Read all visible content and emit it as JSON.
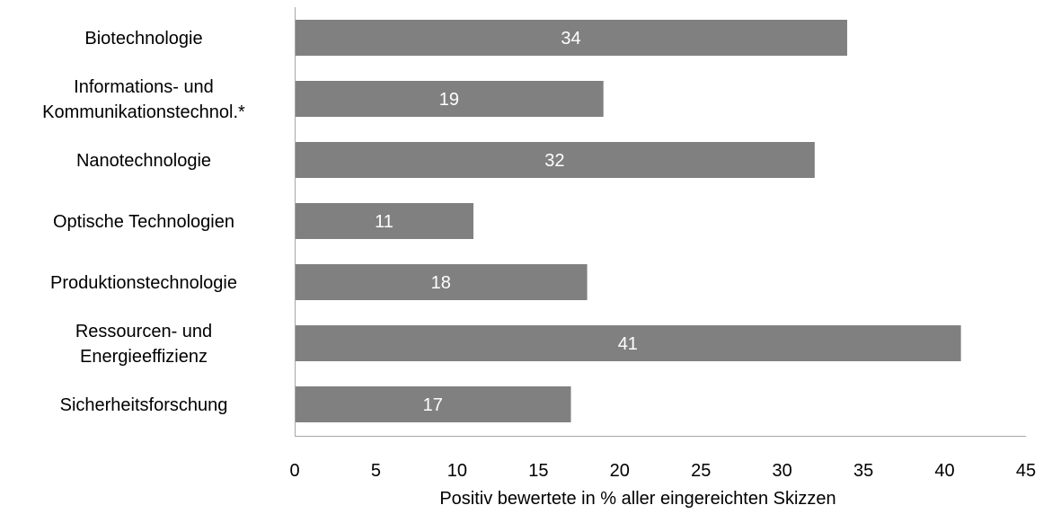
{
  "chart_data": {
    "type": "bar",
    "orientation": "horizontal",
    "categories": [
      [
        "Biotechnologie"
      ],
      [
        "Informations- und",
        "Kommunikationstechnol.*"
      ],
      [
        "Nanotechnologie"
      ],
      [
        "Optische Technologien"
      ],
      [
        "Produktionstechnologie"
      ],
      [
        "Ressourcen- und",
        "Energieeffizienz"
      ],
      [
        "Sicherheitsforschung"
      ]
    ],
    "values": [
      34,
      19,
      32,
      11,
      18,
      41,
      17
    ],
    "data_labels": [
      "34",
      "19",
      "32",
      "11",
      "18",
      "41",
      "17"
    ],
    "title": "",
    "xlabel": "Positiv bewertete in % aller eingereichten Skizzen",
    "ylabel": "",
    "xlim": [
      0,
      45
    ],
    "xticks": [
      0,
      5,
      10,
      15,
      20,
      25,
      30,
      35,
      40,
      45
    ],
    "grid": false,
    "legend": "none",
    "colors": {
      "bar": "#808080",
      "bar_label": "#ffffff",
      "axis": "#a6a6a6",
      "text": "#000000"
    }
  }
}
